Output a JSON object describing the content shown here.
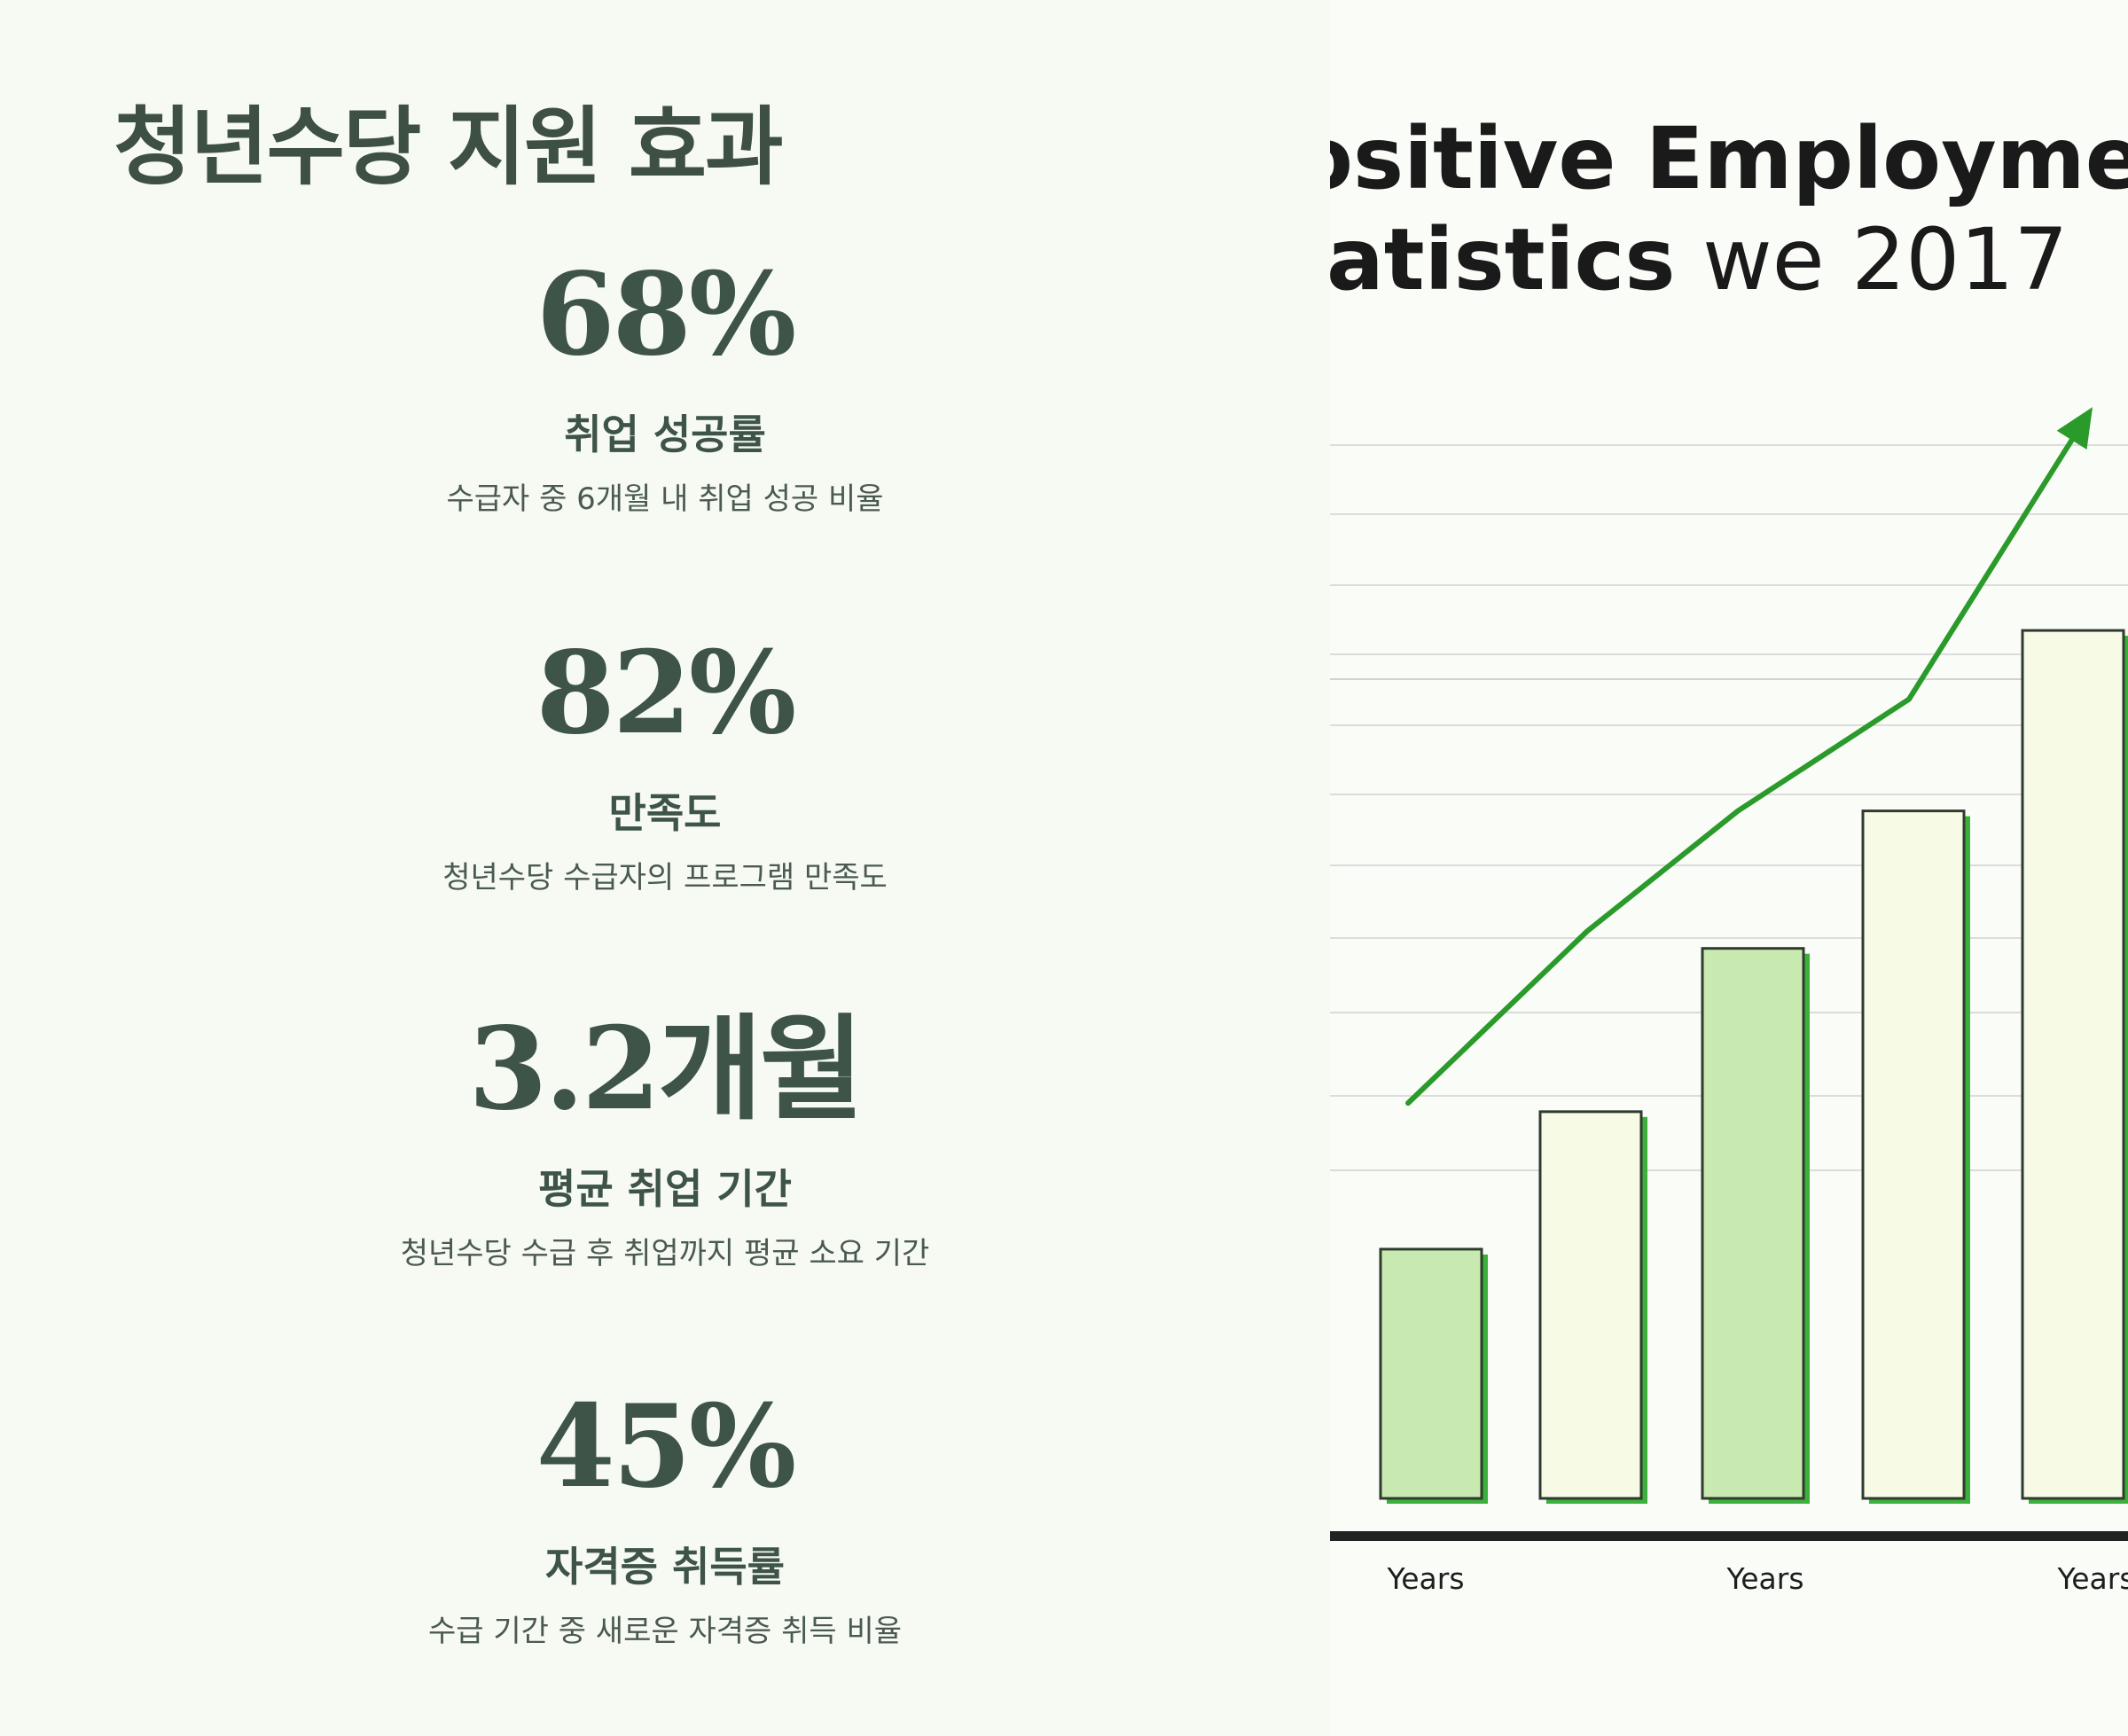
{
  "page": {
    "title": "청년수당 지원 효과"
  },
  "stats": [
    {
      "value": "68%",
      "label": "취업 성공률",
      "description": "수급자 중 6개월 내 취업 성공 비율"
    },
    {
      "value": "82%",
      "label": "만족도",
      "description": "청년수당 수급자의 프로그램 만족도"
    },
    {
      "value": "3.2개월",
      "label": "평균 취업 기간",
      "description": "청년수당 수급 후 취업까지 평균 소요 기간"
    },
    {
      "value": "45%",
      "label": "자격증 취득률",
      "description": "수급 기간 중 새로운 자격증 취득 비율"
    }
  ],
  "colors": {
    "background": "#f6faf3",
    "text": "#3e4f44",
    "bar_green": "#c8eab0",
    "bar_cream": "#f7fbe6",
    "bar_outline": "#2f3b2f",
    "bar_shadow": "#3bb03b",
    "trend_line": "#2a9a2a",
    "axis": "#222222",
    "grid": "#dcdcdc"
  },
  "chart_data": {
    "type": "bar",
    "title_line1": "ositive Employmen",
    "title_line2_bold": "atistics",
    "title_line2_regular": " we 2017",
    "tick_labels": [
      "Years",
      "Years",
      "Years"
    ],
    "values": [
      29,
      45,
      64,
      80,
      101
    ],
    "bar_styles": [
      "green",
      "cream",
      "green",
      "cream",
      "cream"
    ],
    "trend": [
      46,
      66,
      80,
      93,
      127
    ],
    "ylim": [
      0,
      130
    ],
    "grid": true,
    "trend_arrow": true
  }
}
